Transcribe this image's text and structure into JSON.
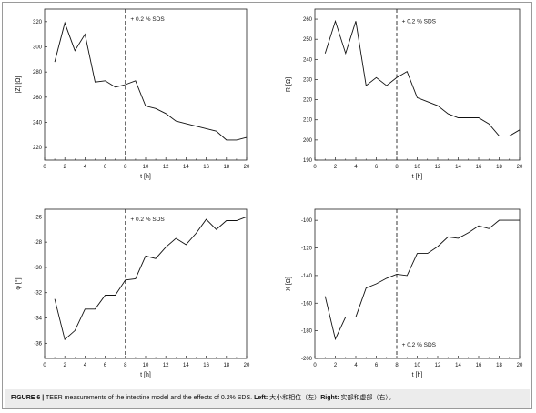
{
  "figure": {
    "caption": {
      "label": "FIGURE 6 |",
      "text": " TEER measurements of the intestine model and the effects of 0.2% SDS. ",
      "left_label": "Left:",
      "left_text": " 大小和相位（左）",
      "right_label": "Right:",
      "right_text": " 实部和虚部（右）。"
    }
  },
  "chart_data": [
    {
      "type": "line",
      "xlabel": "t [h]",
      "ylabel": "|Z| [Ω]",
      "xlim": [
        0,
        20
      ],
      "ylim": [
        210,
        330
      ],
      "xticks": [
        0,
        2,
        4,
        6,
        8,
        10,
        12,
        14,
        16,
        18,
        20
      ],
      "yticks": [
        220,
        240,
        260,
        280,
        300,
        320
      ],
      "marker_x": 8,
      "annotation": {
        "text": "+ 0.2 % SDS",
        "x": 8.5,
        "y": 322
      },
      "x": [
        1,
        2,
        3,
        4,
        5,
        6,
        7,
        8,
        9,
        10,
        11,
        12,
        13,
        14,
        15,
        16,
        17,
        18,
        19,
        20
      ],
      "y": [
        288,
        319,
        297,
        310,
        272,
        273,
        268,
        270,
        273,
        253,
        251,
        247,
        241,
        239,
        237,
        235,
        233,
        226,
        226,
        228
      ]
    },
    {
      "type": "line",
      "xlabel": "t [h]",
      "ylabel": "R [Ω]",
      "xlim": [
        0,
        20
      ],
      "ylim": [
        190,
        265
      ],
      "xticks": [
        0,
        2,
        4,
        6,
        8,
        10,
        12,
        14,
        16,
        18,
        20
      ],
      "yticks": [
        190,
        200,
        210,
        220,
        230,
        240,
        250,
        260
      ],
      "marker_x": 8,
      "annotation": {
        "text": "+ 0.2 % SDS",
        "x": 8.5,
        "y": 259
      },
      "x": [
        1,
        2,
        3,
        4,
        5,
        6,
        7,
        8,
        9,
        10,
        11,
        12,
        13,
        14,
        15,
        16,
        17,
        18,
        19,
        20
      ],
      "y": [
        243,
        259,
        243,
        259,
        227,
        231,
        227,
        231,
        234,
        221,
        219,
        217,
        213,
        211,
        211,
        211,
        208,
        202,
        202,
        205
      ]
    },
    {
      "type": "line",
      "xlabel": "t [h]",
      "ylabel": "φ [°]",
      "xlim": [
        0,
        20
      ],
      "ylim": [
        -37.2,
        -25.4
      ],
      "xticks": [
        0,
        2,
        4,
        6,
        8,
        10,
        12,
        14,
        16,
        18,
        20
      ],
      "yticks": [
        -36,
        -34,
        -32,
        -30,
        -28,
        -26
      ],
      "marker_x": 8,
      "annotation": {
        "text": "+ 0.2 % SDS",
        "x": 8.5,
        "y": -26.2
      },
      "x": [
        1,
        2,
        3,
        4,
        5,
        6,
        7,
        8,
        9,
        10,
        11,
        12,
        13,
        14,
        15,
        16,
        17,
        18,
        19,
        20
      ],
      "y": [
        -32.5,
        -35.7,
        -35.0,
        -33.3,
        -33.3,
        -32.2,
        -32.2,
        -31.0,
        -30.9,
        -29.1,
        -29.3,
        -28.4,
        -27.7,
        -28.2,
        -27.3,
        -26.2,
        -27.0,
        -26.3,
        -26.3,
        -26.0
      ]
    },
    {
      "type": "line",
      "xlabel": "t [h]",
      "ylabel": "X [Ω]",
      "xlim": [
        0,
        20
      ],
      "ylim": [
        -200,
        -92
      ],
      "xticks": [
        0,
        2,
        4,
        6,
        8,
        10,
        12,
        14,
        16,
        18,
        20
      ],
      "yticks": [
        -200,
        -180,
        -160,
        -140,
        -120,
        -100
      ],
      "marker_x": 8,
      "annotation": {
        "text": "+ 0.2 % SDS",
        "x": 8.5,
        "y": -190
      },
      "x": [
        1,
        2,
        3,
        4,
        5,
        6,
        7,
        8,
        9,
        10,
        11,
        12,
        13,
        14,
        15,
        16,
        17,
        18,
        19,
        20
      ],
      "y": [
        -155,
        -186,
        -170,
        -170,
        -149,
        -146,
        -142,
        -139,
        -140,
        -124,
        -124,
        -119,
        -112,
        -113,
        -109,
        -104,
        -106,
        -100,
        -100,
        -100
      ]
    }
  ]
}
